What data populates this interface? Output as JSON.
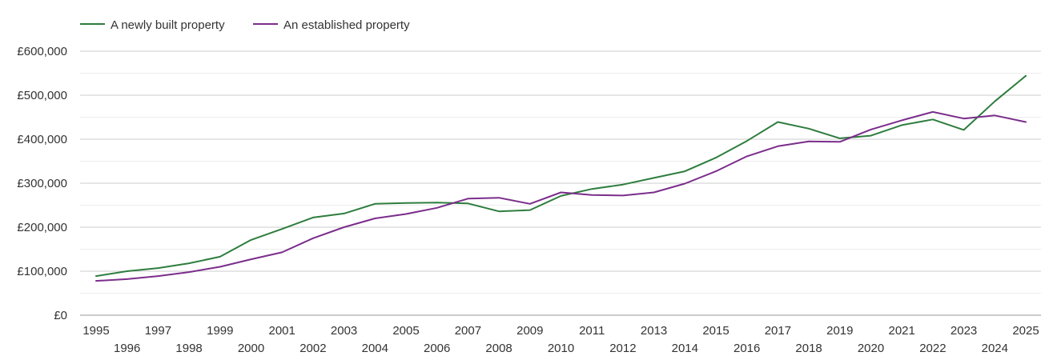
{
  "chart_data": {
    "type": "line",
    "title": "",
    "xlabel": "",
    "ylabel": "",
    "x": [
      1995,
      1996,
      1997,
      1998,
      1999,
      2000,
      2001,
      2002,
      2003,
      2004,
      2005,
      2006,
      2007,
      2008,
      2009,
      2010,
      2011,
      2012,
      2013,
      2014,
      2015,
      2016,
      2017,
      2018,
      2019,
      2020,
      2021,
      2022,
      2023,
      2024,
      2025
    ],
    "ylim": [
      0,
      600000
    ],
    "y_ticks": [
      0,
      100000,
      200000,
      300000,
      400000,
      500000,
      600000
    ],
    "y_tick_labels": [
      "£0",
      "£100,000",
      "£200,000",
      "£300,000",
      "£400,000",
      "£500,000",
      "£600,000"
    ],
    "x_tick_labels": [
      "1995",
      "1996",
      "1997",
      "1998",
      "1999",
      "2000",
      "2001",
      "2002",
      "2003",
      "2004",
      "2005",
      "2006",
      "2007",
      "2008",
      "2009",
      "2010",
      "2011",
      "2012",
      "2013",
      "2014",
      "2015",
      "2016",
      "2017",
      "2018",
      "2019",
      "2020",
      "2021",
      "2022",
      "2023",
      "2024",
      "2025"
    ],
    "grid": true,
    "legend_position": "top-left",
    "series": [
      {
        "name": "A newly built property",
        "color": "#2e7d3e",
        "values": [
          89000,
          100000,
          107000,
          118000,
          133000,
          171000,
          196000,
          222000,
          231000,
          253000,
          255000,
          256000,
          254000,
          236000,
          239000,
          271000,
          287000,
          297000,
          312000,
          327000,
          358000,
          396000,
          439000,
          424000,
          402000,
          408000,
          432000,
          445000,
          421000,
          486000,
          544000
        ]
      },
      {
        "name": "An established property",
        "color": "#7b2d8b",
        "values": [
          78000,
          82000,
          89000,
          98000,
          110000,
          127000,
          143000,
          175000,
          200000,
          220000,
          230000,
          244000,
          265000,
          267000,
          253000,
          279000,
          273000,
          272000,
          279000,
          299000,
          327000,
          361000,
          384000,
          395000,
          394000,
          422000,
          443000,
          462000,
          447000,
          454000,
          439000
        ]
      }
    ]
  }
}
